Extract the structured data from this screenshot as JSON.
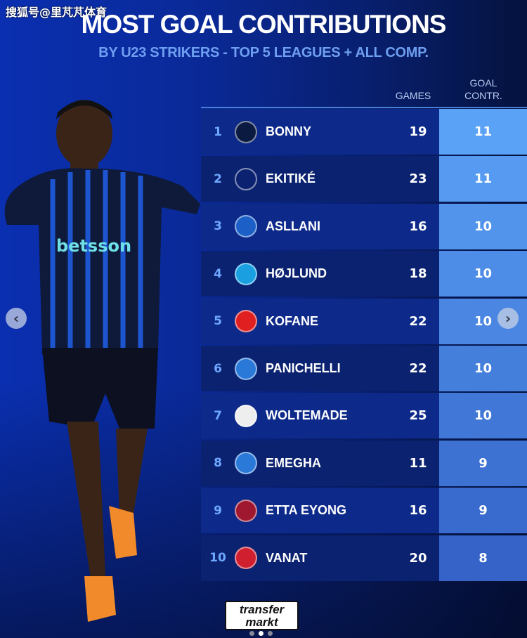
{
  "watermark": "搜狐号@里芃芃体育",
  "title": "MOST GOAL CONTRIBUTIONS",
  "subtitle": "BY U23 STRIKERS - TOP 5 LEAGUES + ALL COMP.",
  "columns": {
    "games": "GAMES",
    "goal_line1": "GOAL",
    "goal_line2": "CONTR."
  },
  "rows": [
    {
      "rank": "1",
      "name": "BONNY",
      "club_icon": "inter-crest",
      "games": "19",
      "contr": "11"
    },
    {
      "rank": "2",
      "name": "EKITIKÉ",
      "club_icon": "liverpool-crest",
      "games": "23",
      "contr": "11"
    },
    {
      "rank": "3",
      "name": "ASLLANI",
      "club_icon": "hoffenheim-crest",
      "games": "16",
      "contr": "10"
    },
    {
      "rank": "4",
      "name": "HØJLUND",
      "club_icon": "napoli-crest",
      "games": "18",
      "contr": "10"
    },
    {
      "rank": "5",
      "name": "KOFANE",
      "club_icon": "leverkusen-crest",
      "games": "22",
      "contr": "10"
    },
    {
      "rank": "6",
      "name": "PANICHELLI",
      "club_icon": "strasbourg-crest",
      "games": "22",
      "contr": "10"
    },
    {
      "rank": "7",
      "name": "WOLTEMADE",
      "club_icon": "newcastle-stuttgart-crest",
      "games": "25",
      "contr": "10"
    },
    {
      "rank": "8",
      "name": "EMEGHA",
      "club_icon": "strasbourg-crest",
      "games": "11",
      "contr": "9"
    },
    {
      "rank": "9",
      "name": "ETTA EYONG",
      "club_icon": "levante-villarreal-crest",
      "games": "16",
      "contr": "9"
    },
    {
      "rank": "10",
      "name": "VANAT",
      "club_icon": "girona-crest",
      "games": "20",
      "contr": "8"
    }
  ],
  "logo": {
    "line1": "transfer",
    "line2": "markt"
  },
  "colors": {
    "rank": "#6fa8ff",
    "goal_top": "#5aa2f6",
    "goal_bottom": "#3563c8"
  }
}
